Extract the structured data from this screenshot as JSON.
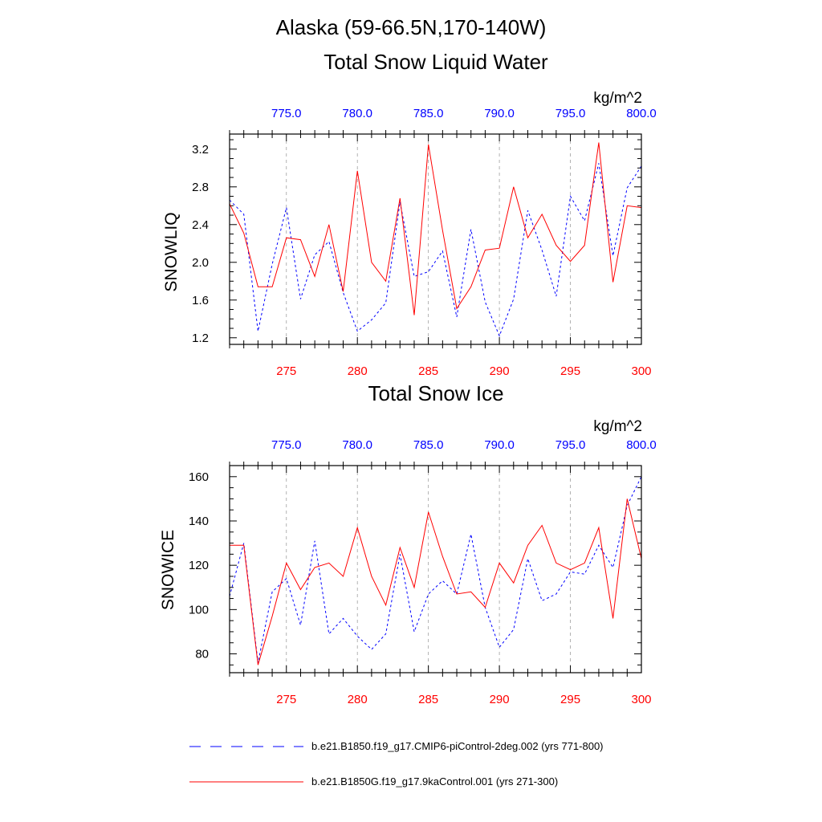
{
  "figure": {
    "title": "Alaska (59-66.5N,170-140W)"
  },
  "legend": {
    "entries": [
      {
        "label": "b.e21.B1850.f19_g17.CMIP6-piControl-2deg.002 (yrs 771-800)",
        "color": "#0000ff",
        "style": "dashed"
      },
      {
        "label": "b.e21.B1850G.f19_g17.9kaControl.001 (yrs 271-300)",
        "color": "#ff0000",
        "style": "solid"
      }
    ]
  },
  "colors": {
    "bottom_axis": "#ff0000",
    "top_axis": "#0000ff",
    "grid": "#a0a0a0"
  },
  "chart_data": [
    {
      "type": "line",
      "title": "Total Snow Liquid Water",
      "units": "kg/m^2",
      "ylabel": "SNOWLIQ",
      "xlabel": "",
      "x_bottom": {
        "range": [
          271,
          300
        ],
        "ticks": [
          275,
          280,
          285,
          290,
          295,
          300
        ],
        "tick_labels": [
          "275",
          "280",
          "285",
          "290",
          "295",
          "300"
        ]
      },
      "x_top": {
        "range": [
          771,
          800
        ],
        "ticks": [
          775,
          780,
          785,
          790,
          795,
          800
        ],
        "tick_labels": [
          "775.0",
          "780.0",
          "785.0",
          "790.0",
          "795.0",
          "800.0"
        ]
      },
      "ylim": [
        1.13,
        3.36
      ],
      "y_ticks": [
        1.2,
        1.6,
        2.0,
        2.4,
        2.8,
        3.2
      ],
      "y_tick_labels": [
        "1.2",
        "1.6",
        "2.0",
        "2.4",
        "2.8",
        "3.2"
      ],
      "grid": "vertical dashed at 275, 280, 285, 290, 295",
      "series": [
        {
          "x": [
            771,
            772,
            773,
            774,
            775,
            776,
            777,
            778,
            779,
            780,
            781,
            782,
            783,
            784,
            785,
            786,
            787,
            788,
            789,
            790,
            791,
            792,
            793,
            794,
            795,
            796,
            797,
            798,
            799,
            800
          ],
          "values": [
            2.66,
            2.51,
            1.27,
            1.98,
            2.58,
            1.61,
            2.08,
            2.22,
            1.68,
            1.27,
            1.39,
            1.57,
            2.64,
            1.85,
            1.9,
            2.12,
            1.42,
            2.35,
            1.58,
            1.22,
            1.61,
            2.55,
            2.13,
            1.64,
            2.7,
            2.44,
            3.05,
            2.07,
            2.79,
            3.02
          ]
        },
        {
          "x": [
            271,
            272,
            273,
            274,
            275,
            276,
            277,
            278,
            279,
            280,
            281,
            282,
            283,
            284,
            285,
            286,
            287,
            288,
            289,
            290,
            291,
            292,
            293,
            294,
            295,
            296,
            297,
            298,
            299,
            300
          ],
          "values": [
            2.62,
            2.31,
            1.74,
            1.74,
            2.26,
            2.24,
            1.85,
            2.4,
            1.69,
            2.97,
            2.0,
            1.8,
            2.68,
            1.44,
            3.25,
            2.34,
            1.51,
            1.74,
            2.13,
            2.15,
            2.8,
            2.26,
            2.51,
            2.18,
            2.01,
            2.18,
            3.27,
            1.79,
            2.6,
            2.58
          ]
        }
      ]
    },
    {
      "type": "line",
      "title": "Total Snow Ice",
      "units": "kg/m^2",
      "ylabel": "SNOWICE",
      "xlabel": "",
      "x_bottom": {
        "range": [
          271,
          300
        ],
        "ticks": [
          275,
          280,
          285,
          290,
          295,
          300
        ],
        "tick_labels": [
          "275",
          "280",
          "285",
          "290",
          "295",
          "300"
        ]
      },
      "x_top": {
        "range": [
          771,
          800
        ],
        "ticks": [
          775,
          780,
          785,
          790,
          795,
          800
        ],
        "tick_labels": [
          "775.0",
          "780.0",
          "785.0",
          "790.0",
          "795.0",
          "800.0"
        ]
      },
      "ylim": [
        71.5,
        165
      ],
      "y_ticks": [
        80,
        100,
        120,
        140,
        160
      ],
      "y_tick_labels": [
        "80",
        "100",
        "120",
        "140",
        "160"
      ],
      "grid": "vertical dashed at 275, 280, 285, 290, 295",
      "series": [
        {
          "x": [
            771,
            772,
            773,
            774,
            775,
            776,
            777,
            778,
            779,
            780,
            781,
            782,
            783,
            784,
            785,
            786,
            787,
            788,
            789,
            790,
            791,
            792,
            793,
            794,
            795,
            796,
            797,
            798,
            799,
            800
          ],
          "values": [
            106,
            130,
            76,
            108,
            114,
            93,
            131,
            89,
            96,
            88,
            82,
            89,
            125,
            90,
            107,
            113,
            107,
            134,
            101,
            83,
            91,
            123,
            104,
            107,
            117,
            116,
            129,
            119,
            147,
            160
          ]
        },
        {
          "x": [
            271,
            272,
            273,
            274,
            275,
            276,
            277,
            278,
            279,
            280,
            281,
            282,
            283,
            284,
            285,
            286,
            287,
            288,
            289,
            290,
            291,
            292,
            293,
            294,
            295,
            296,
            297,
            298,
            299,
            300
          ],
          "values": [
            129,
            129,
            75,
            97,
            121,
            109,
            119,
            121,
            115,
            137,
            115,
            102,
            128,
            110,
            144,
            124,
            107,
            108,
            101,
            121,
            112,
            129,
            138,
            121,
            118,
            121,
            137,
            96,
            150,
            123
          ]
        }
      ]
    }
  ]
}
